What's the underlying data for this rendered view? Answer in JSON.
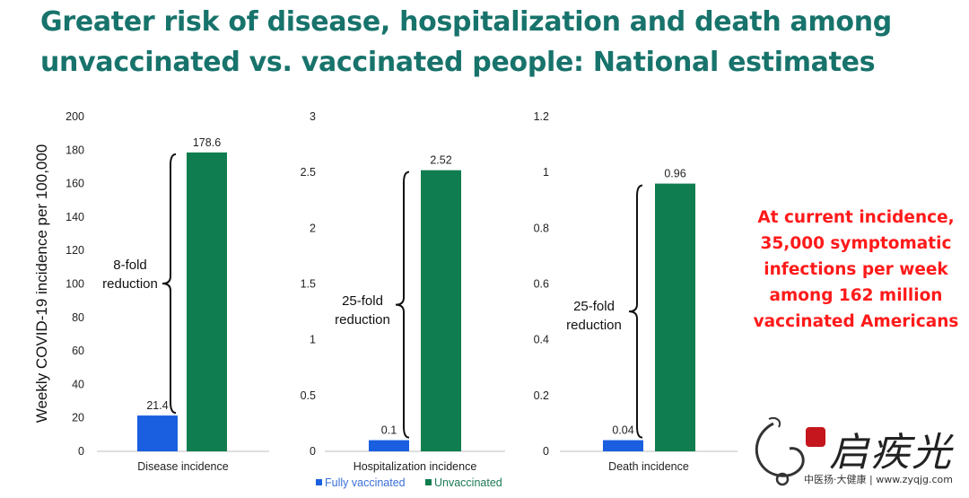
{
  "title_line1": "Greater risk of disease, hospitalization and death among",
  "title_line2": "unvaccinated vs. vaccinated people: National estimates",
  "callout_lines": [
    "At current incidence,",
    "35,000 symptomatic",
    "infections per week",
    "among 162 million",
    "vaccinated Americans"
  ],
  "watermark": {
    "text": "启疾光",
    "sub": "中医扬·大健康 | www.zyqjg.com"
  },
  "colors": {
    "title": "#17736b",
    "fully_vaccinated": "#1a5fe0",
    "unvaccinated": "#0f7d4f",
    "callout": "#ff1a1a"
  },
  "chart_data": [
    {
      "type": "bar",
      "categories": [
        "Disease incidence"
      ],
      "ylabel": "Weekly COVID-19 incidence per 100,000",
      "ylim": [
        0,
        200
      ],
      "yticks": [
        "0",
        "20",
        "40",
        "60",
        "80",
        "100",
        "120",
        "140",
        "160",
        "180",
        "200"
      ],
      "series": [
        {
          "name": "Fully vaccinated",
          "values": [
            21.4
          ],
          "labels": [
            "21.4"
          ]
        },
        {
          "name": "Unvaccinated",
          "values": [
            178.6
          ],
          "labels": [
            "178.6"
          ]
        }
      ],
      "annotation": [
        "8-fold",
        "reduction"
      ]
    },
    {
      "type": "bar",
      "categories": [
        "Hospitalization incidence"
      ],
      "ylim": [
        0,
        3
      ],
      "yticks": [
        "0",
        "0.5",
        "1",
        "1.5",
        "2",
        "2.5",
        "3"
      ],
      "series": [
        {
          "name": "Fully vaccinated",
          "values": [
            0.1
          ],
          "labels": [
            "0.1"
          ]
        },
        {
          "name": "Unvaccinated",
          "values": [
            2.52
          ],
          "labels": [
            "2.52"
          ]
        }
      ],
      "annotation": [
        "25-fold",
        "reduction"
      ]
    },
    {
      "type": "bar",
      "categories": [
        "Death incidence"
      ],
      "ylim": [
        0,
        1.2
      ],
      "yticks": [
        "0",
        "0.2",
        "0.4",
        "0.6",
        "0.8",
        "1",
        "1.2"
      ],
      "series": [
        {
          "name": "Fully vaccinated",
          "values": [
            0.04
          ],
          "labels": [
            "0.04"
          ]
        },
        {
          "name": "Unvaccinated",
          "values": [
            0.96
          ],
          "labels": [
            "0.96"
          ]
        }
      ],
      "annotation": [
        "25-fold",
        "reduction"
      ]
    }
  ],
  "legend": {
    "placement": "bottom-center",
    "items": [
      "Fully vaccinated",
      "Unvaccinated"
    ]
  }
}
